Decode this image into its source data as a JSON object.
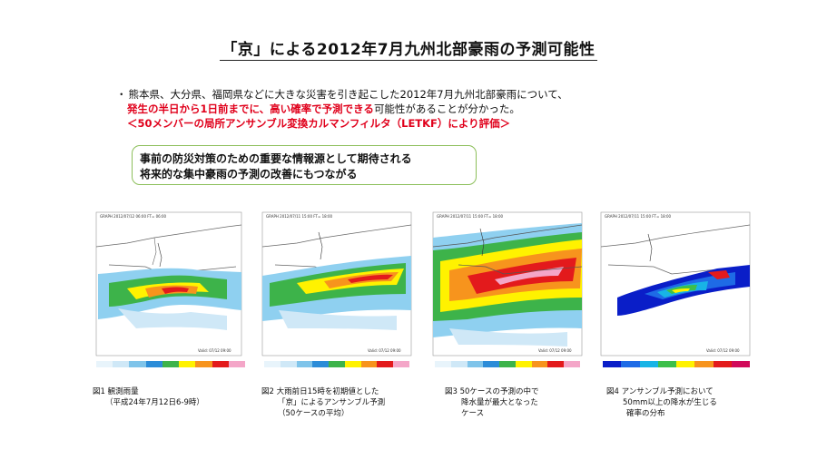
{
  "title": "「京」による2012年7月九州北部豪雨の予測可能性",
  "bullets": {
    "line1_dot": "・",
    "line1": "熊本県、大分県、福岡県などに大きな災害を引き起こした2012年7月九州北部豪雨について、",
    "line2_red": "発生の半日から1日前までに、高い確率で予測できる",
    "line2_rest": "可能性があることが分かった。",
    "line3": "＜50メンバーの局所アンサンブル変換カルマンフィルタ（LETKF）により評価＞"
  },
  "callout": {
    "line1": "事前の防災対策のための重要な情報源として期待される",
    "line2": "将来的な集中豪雨の予測の改善にもつながる"
  },
  "figures": [
    {
      "caption_line1": "図1  観測雨量",
      "caption_line2": "（平成24年7月12日6-9時）",
      "caption_line3": ""
    },
    {
      "caption_line1": "図2  大雨前日15時を初期値とした",
      "caption_line2": "「京」によるアンサンブル予測",
      "caption_line3": "（50ケースの平均）"
    },
    {
      "caption_line1": "図3  50ケースの予測の中で",
      "caption_line2": "降水量が最大となった",
      "caption_line3": "ケース"
    },
    {
      "caption_line1": "図4  アンサンブル予測において",
      "caption_line2": "50mm以上の降水が生じる",
      "caption_line3": "確率の分布"
    }
  ],
  "colors": {
    "accent_red": "#e0001b",
    "callout_border": "#8cbf5a",
    "rain_scale": [
      "#cfe8f7",
      "#7fc4ea",
      "#2b8cd8",
      "#3db34a",
      "#fff200",
      "#f7941d",
      "#e31a1c",
      "#f4a6c8"
    ],
    "prob_scale": [
      "#0a1ec8",
      "#1e6be6",
      "#18b4e6",
      "#3dbf4a",
      "#fff200",
      "#f7941d",
      "#e31a1c",
      "#d10a5a"
    ]
  }
}
